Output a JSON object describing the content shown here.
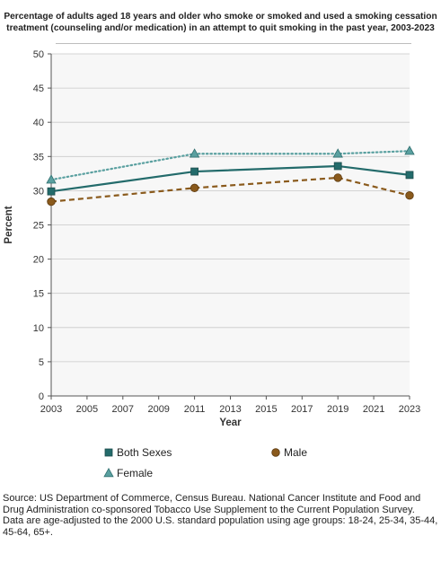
{
  "title_line1": "Percentage of adults aged 18 years and older who smoke or smoked and used a smoking cessation",
  "title_line2": "treatment (counseling and/or medication) in an attempt to quit smoking in the past year, 2003-2023",
  "chart_data": {
    "type": "line",
    "xlabel": "Year",
    "ylabel": "Percent",
    "xlim": [
      2003,
      2023
    ],
    "ylim": [
      0,
      50
    ],
    "x_ticks": [
      2003,
      2005,
      2007,
      2009,
      2011,
      2013,
      2015,
      2017,
      2019,
      2021,
      2023
    ],
    "y_ticks": [
      0,
      5,
      10,
      15,
      20,
      25,
      30,
      35,
      40,
      45,
      50
    ],
    "grid": true,
    "legend_position": "bottom",
    "series": [
      {
        "name": "Both Sexes",
        "x": [
          2003,
          2011,
          2019,
          2023
        ],
        "values": [
          29.9,
          32.8,
          33.6,
          32.3
        ],
        "color": "#236b6b",
        "marker": "square",
        "line": "solid"
      },
      {
        "name": "Male",
        "x": [
          2003,
          2011,
          2019,
          2023
        ],
        "values": [
          28.4,
          30.4,
          31.9,
          29.3
        ],
        "color": "#8a5a1c",
        "marker": "circle",
        "line": "dashed"
      },
      {
        "name": "Female",
        "x": [
          2003,
          2011,
          2019,
          2023
        ],
        "values": [
          31.6,
          35.4,
          35.4,
          35.8
        ],
        "color": "#5aa0a0",
        "marker": "triangle",
        "line": "dotted"
      }
    ]
  },
  "footnote": {
    "source": "Source: US Department of Commerce, Census Bureau. National Cancer Institute and Food and Drug Administration co-sponsored Tobacco Use Supplement to the Current Population Survey.",
    "note": "Data are age-adjusted to the 2000 U.S. standard population using age groups: 18-24, 25-34, 35-44, 45-64, 65+."
  }
}
